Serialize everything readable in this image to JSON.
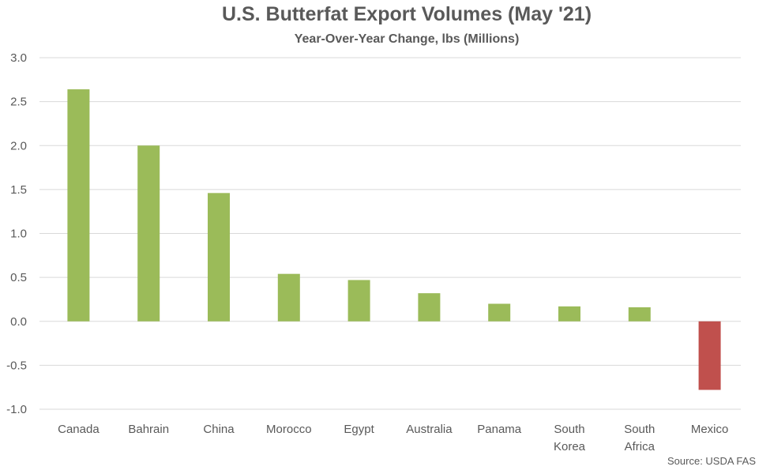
{
  "chart_data": {
    "type": "bar",
    "title": "U.S. Butterfat Export Volumes (May '21)",
    "subtitle": "Year-Over-Year Change, lbs (Millions)",
    "categories": [
      "Canada",
      "Bahrain",
      "China",
      "Morocco",
      "Egypt",
      "Australia",
      "Panama",
      "South Korea",
      "South Africa",
      "Mexico"
    ],
    "values": [
      2.64,
      2.0,
      1.46,
      0.54,
      0.47,
      0.32,
      0.2,
      0.17,
      0.16,
      -0.78
    ],
    "ylim": [
      -1.0,
      3.0
    ],
    "yticks": [
      "3.0",
      "2.5",
      "2.0",
      "1.5",
      "1.0",
      "0.5",
      "0.0",
      "-0.5",
      "-1.0"
    ],
    "grid": true,
    "legend": "none",
    "colors": {
      "positive": "#9BBB59",
      "negative": "#C0504D",
      "grid": "#D9D9D9",
      "text": "#595959"
    }
  },
  "source": "Source: USDA FAS"
}
